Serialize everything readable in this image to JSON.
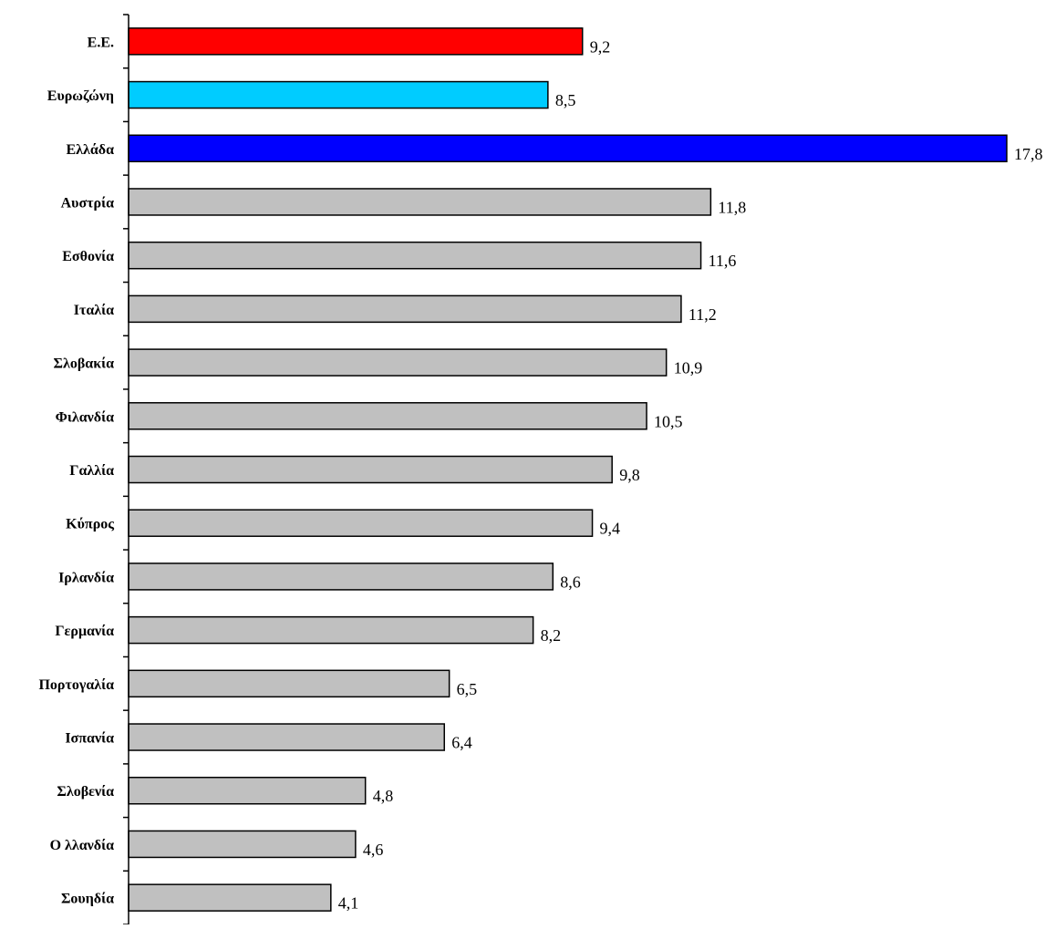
{
  "chart_data": {
    "type": "bar",
    "orientation": "horizontal",
    "categories": [
      "Ε.Ε.",
      "Ευρωζώνη",
      "Ελλάδα",
      "Αυστρία",
      "Εσθονία",
      "Ιταλία",
      "Σλοβακία",
      "Φιλανδία",
      "Γαλλία",
      "Κύπρος",
      "Ιρλανδία",
      "Γερμανία",
      "Πορτογαλία",
      "Ισπανία",
      "Σλοβενία",
      "Ο λλανδία",
      "Σουηδία"
    ],
    "values": [
      9.2,
      8.5,
      17.8,
      11.8,
      11.6,
      11.2,
      10.9,
      10.5,
      9.8,
      9.4,
      8.6,
      8.2,
      6.5,
      6.4,
      4.8,
      4.6,
      4.1
    ],
    "value_labels": [
      "9,2",
      "8,5",
      "17,8",
      "11,8",
      "11,6",
      "11,2",
      "10,9",
      "10,5",
      "9,8",
      "9,4",
      "8,6",
      "8,2",
      "6,5",
      "6,4",
      "4,8",
      "4,6",
      "4,1"
    ],
    "bar_colors": [
      "#FF0000",
      "#00CCFF",
      "#0000FF",
      "#C0C0C0",
      "#C0C0C0",
      "#C0C0C0",
      "#C0C0C0",
      "#C0C0C0",
      "#C0C0C0",
      "#C0C0C0",
      "#C0C0C0",
      "#C0C0C0",
      "#C0C0C0",
      "#C0C0C0",
      "#C0C0C0",
      "#C0C0C0",
      "#C0C0C0"
    ],
    "xlim": [
      0,
      17.8
    ],
    "title": "",
    "xlabel": "",
    "ylabel": "",
    "grid": false,
    "legend": false
  }
}
